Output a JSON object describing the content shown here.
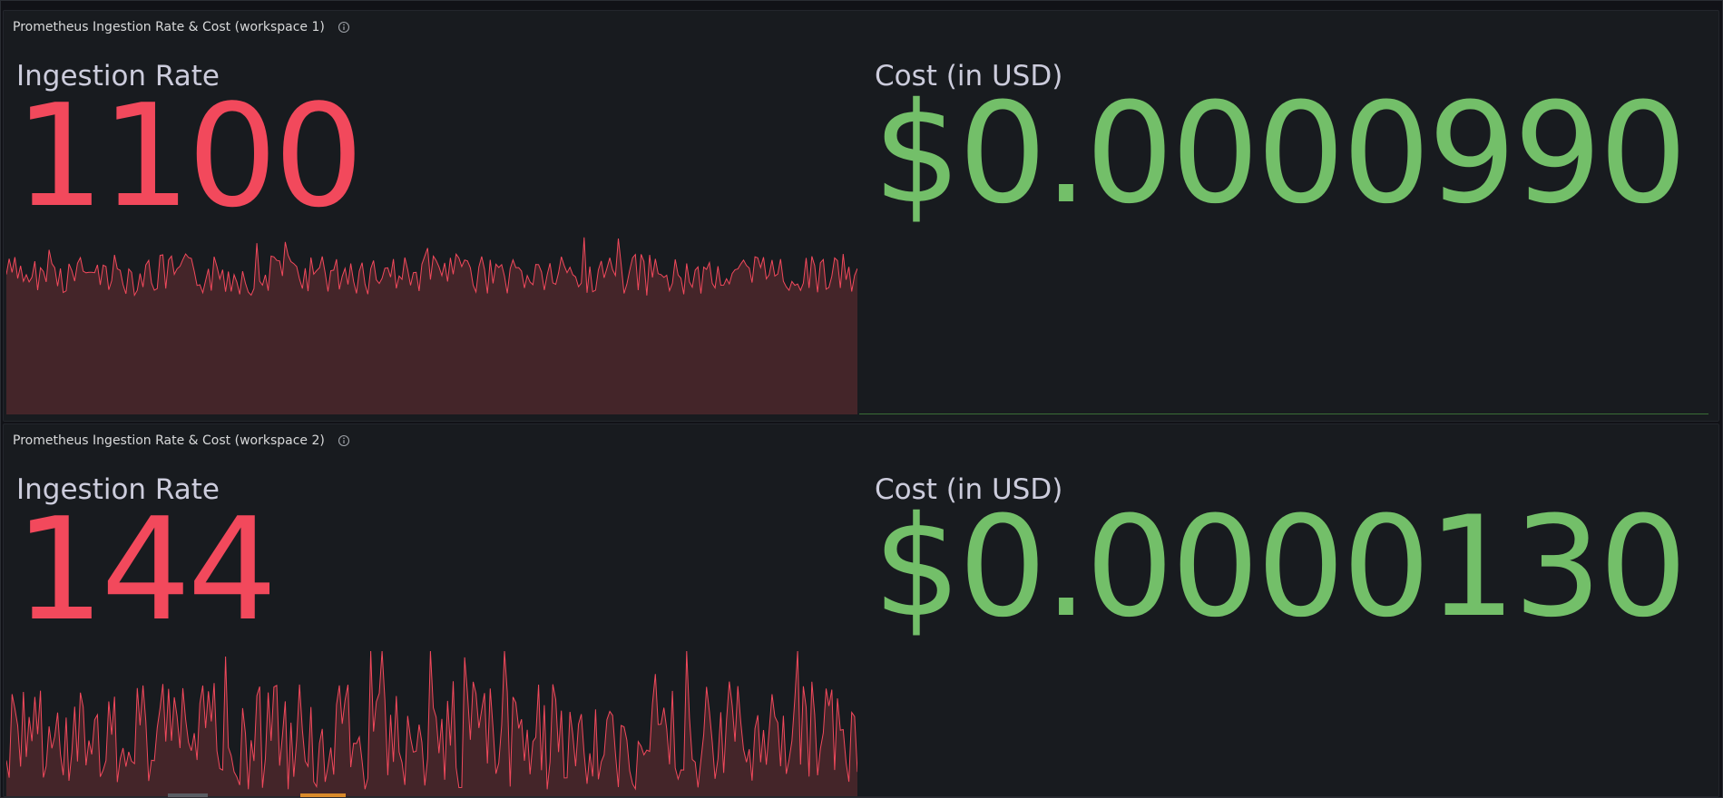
{
  "colors": {
    "value_red": "#f2495c",
    "value_green": "#73bf69",
    "spark_line": "#f2495c",
    "spark_fill": "#442529"
  },
  "panels": [
    {
      "title": "Prometheus Ingestion Rate & Cost (workspace 1)",
      "info_icon": "info-circle-icon",
      "ingestion_label": "Ingestion Rate",
      "ingestion_value": "1100",
      "cost_label": "Cost (in USD)",
      "cost_value": "$0.0000990"
    },
    {
      "title": "Prometheus Ingestion Rate & Cost (workspace 2)",
      "info_icon": "info-circle-icon",
      "ingestion_label": "Ingestion Rate",
      "ingestion_value": "144",
      "cost_label": "Cost (in USD)",
      "cost_value": "$0.0000130"
    }
  ]
}
